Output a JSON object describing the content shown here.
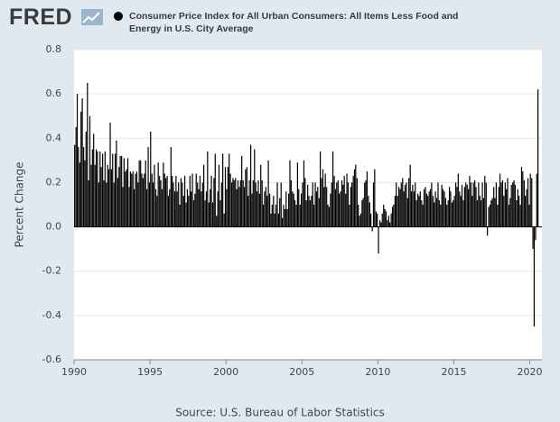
{
  "logo": "FRED",
  "chart_data": {
    "type": "bar",
    "series": [
      {
        "name": "Consumer Price Index for All Urban Consumers: All Items Less Food and Energy in U.S. City Average",
        "color": "#000000",
        "x": [
          1990.04,
          1990.13,
          1990.21,
          1990.29,
          1990.38,
          1990.46,
          1990.54,
          1990.63,
          1990.71,
          1990.79,
          1990.88,
          1990.96,
          1991.04,
          1991.13,
          1991.21,
          1991.29,
          1991.38,
          1991.46,
          1991.54,
          1991.63,
          1991.71,
          1991.79,
          1991.88,
          1991.96,
          1992.04,
          1992.13,
          1992.21,
          1992.29,
          1992.38,
          1992.46,
          1992.54,
          1992.63,
          1992.71,
          1992.79,
          1992.88,
          1992.96,
          1993.04,
          1993.13,
          1993.21,
          1993.29,
          1993.38,
          1993.46,
          1993.54,
          1993.63,
          1993.71,
          1993.79,
          1993.88,
          1993.96,
          1994.04,
          1994.13,
          1994.21,
          1994.29,
          1994.38,
          1994.46,
          1994.54,
          1994.63,
          1994.71,
          1994.79,
          1994.88,
          1994.96,
          1995.04,
          1995.13,
          1995.21,
          1995.29,
          1995.38,
          1995.46,
          1995.54,
          1995.63,
          1995.71,
          1995.79,
          1995.88,
          1995.96,
          1996.04,
          1996.13,
          1996.21,
          1996.29,
          1996.38,
          1996.46,
          1996.54,
          1996.63,
          1996.71,
          1996.79,
          1996.88,
          1996.96,
          1997.04,
          1997.13,
          1997.21,
          1997.29,
          1997.38,
          1997.46,
          1997.54,
          1997.63,
          1997.71,
          1997.79,
          1997.88,
          1997.96,
          1998.04,
          1998.13,
          1998.21,
          1998.29,
          1998.38,
          1998.46,
          1998.54,
          1998.63,
          1998.71,
          1998.79,
          1998.88,
          1998.96,
          1999.04,
          1999.13,
          1999.21,
          1999.29,
          1999.38,
          1999.46,
          1999.54,
          1999.63,
          1999.71,
          1999.79,
          1999.88,
          1999.96,
          2000.04,
          2000.13,
          2000.21,
          2000.29,
          2000.38,
          2000.46,
          2000.54,
          2000.63,
          2000.71,
          2000.79,
          2000.88,
          2000.96,
          2001.04,
          2001.13,
          2001.21,
          2001.29,
          2001.38,
          2001.46,
          2001.54,
          2001.63,
          2001.71,
          2001.79,
          2001.88,
          2001.96,
          2002.04,
          2002.13,
          2002.21,
          2002.29,
          2002.38,
          2002.46,
          2002.54,
          2002.63,
          2002.71,
          2002.79,
          2002.88,
          2002.96,
          2003.04,
          2003.13,
          2003.21,
          2003.29,
          2003.38,
          2003.46,
          2003.54,
          2003.63,
          2003.71,
          2003.79,
          2003.88,
          2003.96,
          2004.04,
          2004.13,
          2004.21,
          2004.29,
          2004.38,
          2004.46,
          2004.54,
          2004.63,
          2004.71,
          2004.79,
          2004.88,
          2004.96,
          2005.04,
          2005.13,
          2005.21,
          2005.29,
          2005.38,
          2005.46,
          2005.54,
          2005.63,
          2005.71,
          2005.79,
          2005.88,
          2005.96,
          2006.04,
          2006.13,
          2006.21,
          2006.29,
          2006.38,
          2006.46,
          2006.54,
          2006.63,
          2006.71,
          2006.79,
          2006.88,
          2006.96,
          2007.04,
          2007.13,
          2007.21,
          2007.29,
          2007.38,
          2007.46,
          2007.54,
          2007.63,
          2007.71,
          2007.79,
          2007.88,
          2007.96,
          2008.04,
          2008.13,
          2008.21,
          2008.29,
          2008.38,
          2008.46,
          2008.54,
          2008.63,
          2008.71,
          2008.79,
          2008.88,
          2008.96,
          2009.04,
          2009.13,
          2009.21,
          2009.29,
          2009.38,
          2009.46,
          2009.54,
          2009.63,
          2009.71,
          2009.79,
          2009.88,
          2009.96,
          2010.04,
          2010.13,
          2010.21,
          2010.29,
          2010.38,
          2010.46,
          2010.54,
          2010.63,
          2010.71,
          2010.79,
          2010.88,
          2010.96,
          2011.04,
          2011.13,
          2011.21,
          2011.29,
          2011.38,
          2011.46,
          2011.54,
          2011.63,
          2011.71,
          2011.79,
          2011.88,
          2011.96,
          2012.04,
          2012.13,
          2012.21,
          2012.29,
          2012.38,
          2012.46,
          2012.54,
          2012.63,
          2012.71,
          2012.79,
          2012.88,
          2012.96,
          2013.04,
          2013.13,
          2013.21,
          2013.29,
          2013.38,
          2013.46,
          2013.54,
          2013.63,
          2013.71,
          2013.79,
          2013.88,
          2013.96,
          2014.04,
          2014.13,
          2014.21,
          2014.29,
          2014.38,
          2014.46,
          2014.54,
          2014.63,
          2014.71,
          2014.79,
          2014.88,
          2014.96,
          2015.04,
          2015.13,
          2015.21,
          2015.29,
          2015.38,
          2015.46,
          2015.54,
          2015.63,
          2015.71,
          2015.79,
          2015.88,
          2015.96,
          2016.04,
          2016.13,
          2016.21,
          2016.29,
          2016.38,
          2016.46,
          2016.54,
          2016.63,
          2016.71,
          2016.79,
          2016.88,
          2016.96,
          2017.04,
          2017.13,
          2017.21,
          2017.29,
          2017.38,
          2017.46,
          2017.54,
          2017.63,
          2017.71,
          2017.79,
          2017.88,
          2017.96,
          2018.04,
          2018.13,
          2018.21,
          2018.29,
          2018.38,
          2018.46,
          2018.54,
          2018.63,
          2018.71,
          2018.79,
          2018.88,
          2018.96,
          2019.04,
          2019.13,
          2019.21,
          2019.29,
          2019.38,
          2019.46,
          2019.54,
          2019.63,
          2019.71,
          2019.79,
          2019.88,
          2019.96,
          2020.04,
          2020.13,
          2020.21,
          2020.29,
          2020.38,
          2020.46,
          2020.54
        ],
        "values": [
          0.37,
          0.45,
          0.6,
          0.36,
          0.29,
          0.52,
          0.58,
          0.36,
          0.3,
          0.43,
          0.65,
          0.21,
          0.5,
          0.28,
          0.35,
          0.42,
          0.28,
          0.35,
          0.34,
          0.2,
          0.34,
          0.27,
          0.33,
          0.21,
          0.34,
          0.2,
          0.28,
          0.26,
          0.47,
          0.26,
          0.33,
          0.2,
          0.33,
          0.39,
          0.22,
          0.27,
          0.32,
          0.32,
          0.18,
          0.31,
          0.25,
          0.26,
          0.31,
          0.18,
          0.25,
          0.24,
          0.25,
          0.17,
          0.24,
          0.25,
          0.2,
          0.3,
          0.3,
          0.24,
          0.22,
          0.24,
          0.3,
          0.17,
          0.36,
          0.2,
          0.43,
          0.24,
          0.2,
          0.28,
          0.17,
          0.14,
          0.29,
          0.23,
          0.21,
          0.17,
          0.29,
          0.24,
          0.22,
          0.23,
          0.14,
          0.17,
          0.36,
          0.23,
          0.2,
          0.16,
          0.23,
          0.16,
          0.2,
          0.1,
          0.22,
          0.2,
          0.14,
          0.23,
          0.11,
          0.17,
          0.14,
          0.23,
          0.16,
          0.24,
          0.12,
          0.15,
          0.24,
          0.2,
          0.17,
          0.23,
          0.16,
          0.2,
          0.28,
          0.12,
          0.16,
          0.34,
          0.11,
          0.17,
          0.23,
          0.11,
          0.22,
          0.33,
          0.05,
          0.16,
          0.28,
          0.12,
          0.2,
          0.33,
          0.06,
          0.27,
          0.17,
          0.27,
          0.33,
          0.24,
          0.2,
          0.22,
          0.21,
          0.22,
          0.17,
          0.21,
          0.18,
          0.21,
          0.32,
          0.21,
          0.18,
          0.26,
          0.27,
          0.14,
          0.21,
          0.37,
          0.15,
          0.21,
          0.35,
          0.2,
          0.16,
          0.21,
          0.15,
          0.28,
          0.21,
          0.1,
          0.16,
          0.18,
          0.14,
          0.3,
          0.15,
          0.06,
          0.1,
          0.14,
          0.06,
          0.1,
          0.2,
          0.06,
          0.13,
          0.2,
          0.04,
          0.1,
          0.08,
          0.16,
          0.08,
          0.15,
          0.3,
          0.21,
          0.16,
          0.15,
          0.12,
          0.1,
          0.29,
          0.17,
          0.1,
          0.15,
          0.2,
          0.3,
          0.22,
          0.12,
          0.19,
          0.14,
          0.12,
          0.14,
          0.2,
          0.1,
          0.2,
          0.16,
          0.18,
          0.13,
          0.34,
          0.22,
          0.26,
          0.18,
          0.24,
          0.18,
          0.1,
          0.09,
          0.15,
          0.2,
          0.34,
          0.23,
          0.17,
          0.2,
          0.21,
          0.15,
          0.16,
          0.21,
          0.19,
          0.23,
          0.15,
          0.24,
          0.2,
          0.1,
          0.18,
          0.2,
          0.23,
          0.26,
          0.28,
          0.22,
          0.1,
          0.05,
          0.06,
          0.12,
          0.13,
          0.2,
          0.21,
          0.25,
          0.14,
          0.11,
          0.06,
          -0.02,
          0.2,
          0.26,
          0.07,
          0.06,
          -0.12,
          0.03,
          0.02,
          0.06,
          0.1,
          0.08,
          0.07,
          0.03,
          0.05,
          0.02,
          0.06,
          0.09,
          0.1,
          0.14,
          0.2,
          0.14,
          0.18,
          0.17,
          0.2,
          0.22,
          0.16,
          0.19,
          0.2,
          0.13,
          0.22,
          0.28,
          0.16,
          0.19,
          0.16,
          0.2,
          0.12,
          0.15,
          0.14,
          0.16,
          0.12,
          0.1,
          0.17,
          0.18,
          0.15,
          0.14,
          0.16,
          0.17,
          0.2,
          0.14,
          0.11,
          0.16,
          0.13,
          0.2,
          0.12,
          0.1,
          0.19,
          0.17,
          0.16,
          0.13,
          0.1,
          0.12,
          0.18,
          0.16,
          0.11,
          0.12,
          0.14,
          0.2,
          0.18,
          0.24,
          0.16,
          0.14,
          0.19,
          0.12,
          0.18,
          0.2,
          0.19,
          0.17,
          0.23,
          0.2,
          0.14,
          0.2,
          0.21,
          0.18,
          0.12,
          0.2,
          0.14,
          0.12,
          0.2,
          0.13,
          0.23,
          0.2,
          -0.04,
          0.09,
          0.1,
          0.12,
          0.13,
          0.18,
          0.13,
          0.2,
          0.1,
          0.18,
          0.24,
          0.2,
          0.21,
          0.14,
          0.2,
          0.17,
          0.22,
          0.1,
          0.13,
          0.19,
          0.2,
          0.21,
          0.19,
          0.12,
          0.17,
          0.14,
          0.1,
          0.27,
          0.25,
          0.21,
          0.14,
          0.17,
          0.22,
          0.1,
          0.24,
          0.22,
          -0.1,
          -0.45,
          -0.06,
          0.24,
          0.62
        ]
      }
    ],
    "ylabel": "Percent Change",
    "xlim": [
      1990,
      2020.8
    ],
    "xticks": [
      1990,
      1995,
      2000,
      2005,
      2010,
      2015,
      2020
    ],
    "ylim": [
      -0.6,
      0.8
    ],
    "yticks": [
      -0.6,
      -0.4,
      -0.2,
      {
        "value": 0,
        "label": "0.0"
      },
      0.2,
      0.4,
      0.6,
      0.8
    ],
    "grid": true,
    "source": "Source: U.S. Bureau of Labor Statistics"
  }
}
